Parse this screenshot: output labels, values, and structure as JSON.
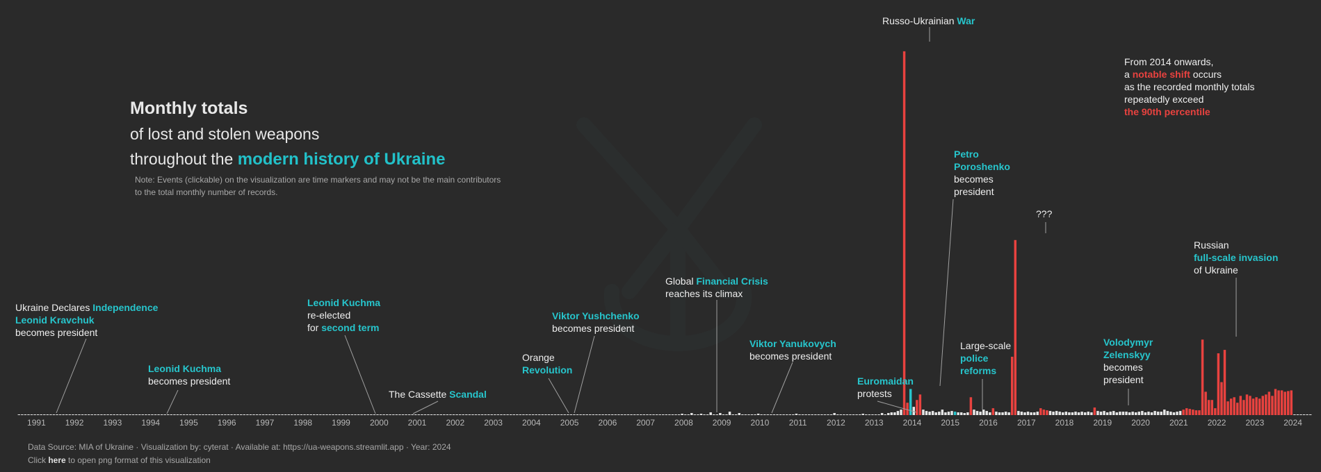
{
  "title": {
    "line1": "Monthly totals",
    "line2": "of lost and stolen weapons",
    "line3_prefix": "throughout the ",
    "line3_highlight": "modern history of Ukraine"
  },
  "note": {
    "line1": "Note: Events (clickable) on the visualization are time markers and may not be the main contributors",
    "line2": "to the total monthly number of records."
  },
  "footer": {
    "line1": "Data Source: MIA of Ukraine · Visualization by: cyterat · Available at: https://ua-weapons.streamlit.app · Year: 2024",
    "line2_prefix": "Click ",
    "line2_link": "here",
    "line2_suffix": " to open png format of this visualization"
  },
  "colors": {
    "background": "#2a2a2a",
    "normal_bar": "#e6e6e6",
    "exceed_bar": "#e8423f",
    "event_bar": "#27c5cc",
    "accent": "#27c5cc",
    "shift": "#e8423f"
  },
  "annotations": {
    "a1991": {
      "l1_pre": "Ukraine Declares ",
      "l1_hl": "Independence",
      "l2_hl": "Leonid Kravchuk",
      "l3": "becomes president"
    },
    "a1994": {
      "l1_hl": "Leonid Kuchma",
      "l2": "becomes president"
    },
    "a1999": {
      "l1_hl": "Leonid Kuchma",
      "l2": "re-elected",
      "l3_pre": "for ",
      "l3_hl": "second term"
    },
    "a2000": {
      "l1_pre": "The Cassette ",
      "l1_hl": "Scandal"
    },
    "a2004": {
      "l1": "Orange",
      "l2_hl": "Revolution"
    },
    "a2005": {
      "l1_hl": "Viktor Yushchenko",
      "l2": "becomes president"
    },
    "a2008": {
      "l1_pre": "Global ",
      "l1_hl": "Financial Crisis",
      "l2": "reaches its climax"
    },
    "a2010": {
      "l1_hl": "Viktor Yanukovych",
      "l2": "becomes president"
    },
    "a2013": {
      "l1_hl": "Euromaidan",
      "l2": "protests"
    },
    "a2014war": {
      "l1_pre": "Russo-Ukrainian ",
      "l1_hl": "War"
    },
    "a2014pres": {
      "l1_hl": "Petro",
      "l2_hl": "Poroshenko",
      "l3": "becomes",
      "l4": "president"
    },
    "a2015": {
      "l1": "Large-scale",
      "l2_hl": "police",
      "l3_hl": "reforms"
    },
    "a2017": {
      "l1": "???"
    },
    "a2019": {
      "l1_hl": "Volodymyr",
      "l2_hl": "Zelenskyy",
      "l3": "becomes",
      "l4": "president"
    },
    "a2022": {
      "l1": "Russian",
      "l2_hl": "full-scale invasion",
      "l3": "of Ukraine"
    },
    "shift": {
      "l1": "From 2014 onwards,",
      "l2_pre": "a ",
      "l2_hl": "notable shift",
      "l2_post": " occurs",
      "l3": "as the recorded monthly totals",
      "l4": "repeatedly exceed",
      "l5_hl": "the 90th percentile"
    }
  },
  "chart_data": {
    "type": "bar",
    "title": "Monthly totals of lost and stolen weapons throughout the modern history of Ukraine",
    "x_unit": "month",
    "x_range": [
      "1991-01",
      "2024-12"
    ],
    "x_ticks": [
      "1991",
      "1992",
      "1993",
      "1994",
      "1995",
      "1996",
      "1997",
      "1998",
      "1999",
      "2000",
      "2001",
      "2002",
      "2003",
      "2004",
      "2005",
      "2006",
      "2007",
      "2008",
      "2009",
      "2010",
      "2011",
      "2012",
      "2013",
      "2014",
      "2015",
      "2016",
      "2017",
      "2018",
      "2019",
      "2020",
      "2021",
      "2022",
      "2023",
      "2024"
    ],
    "y_range": [
      0,
      540
    ],
    "baseline_value": 1,
    "notes": "Bars at or below the 90th percentile drawn in light gray; bars exceeding it drawn in red; event months drawn in teal.",
    "values": {
      "2008-06": 2,
      "2008-09": 3,
      "2008-12": 2,
      "2009-03": 4,
      "2009-06": 3,
      "2009-09": 5,
      "2009-12": 3,
      "2010-06": 2,
      "2011-06": 2,
      "2012-06": 3,
      "2013-03": 2,
      "2013-09": 3,
      "2013-11": 3,
      "2013-12": 4,
      "2014-01": 4,
      "2014-02": 6,
      "2014-03": 8,
      "2014-04": 530,
      "2014-05": 18,
      "2014-06": 38,
      "2014-07": 12,
      "2014-08": 22,
      "2014-09": 30,
      "2014-10": 8,
      "2014-11": 6,
      "2014-12": 5,
      "2015-01": 6,
      "2015-02": 4,
      "2015-03": 5,
      "2015-04": 8,
      "2015-05": 4,
      "2015-06": 5,
      "2015-07": 6,
      "2015-08": 5,
      "2015-09": 4,
      "2015-10": 4,
      "2015-11": 3,
      "2015-12": 4,
      "2016-01": 26,
      "2016-02": 8,
      "2016-03": 6,
      "2016-04": 5,
      "2016-05": 8,
      "2016-06": 6,
      "2016-07": 4,
      "2016-08": 10,
      "2016-09": 5,
      "2016-10": 4,
      "2016-11": 4,
      "2016-12": 5,
      "2017-01": 4,
      "2017-02": 85,
      "2017-03": 255,
      "2017-04": 6,
      "2017-05": 5,
      "2017-06": 4,
      "2017-07": 5,
      "2017-08": 4,
      "2017-09": 4,
      "2017-10": 5,
      "2017-11": 10,
      "2017-12": 8,
      "2018-01": 7,
      "2018-02": 6,
      "2018-03": 5,
      "2018-04": 6,
      "2018-05": 5,
      "2018-06": 4,
      "2018-07": 5,
      "2018-08": 4,
      "2018-09": 4,
      "2018-10": 5,
      "2018-11": 4,
      "2018-12": 5,
      "2019-01": 4,
      "2019-02": 5,
      "2019-03": 4,
      "2019-04": 11,
      "2019-05": 6,
      "2019-06": 5,
      "2019-07": 6,
      "2019-08": 4,
      "2019-09": 5,
      "2019-10": 6,
      "2019-11": 4,
      "2019-12": 5,
      "2020-01": 5,
      "2020-02": 5,
      "2020-03": 4,
      "2020-04": 5,
      "2020-05": 4,
      "2020-06": 5,
      "2020-07": 6,
      "2020-08": 4,
      "2020-09": 5,
      "2020-10": 4,
      "2020-11": 6,
      "2020-12": 5,
      "2021-01": 5,
      "2021-02": 8,
      "2021-03": 6,
      "2021-04": 5,
      "2021-05": 4,
      "2021-06": 5,
      "2021-07": 6,
      "2021-08": 8,
      "2021-09": 10,
      "2021-10": 9,
      "2021-11": 8,
      "2021-12": 7,
      "2022-01": 7,
      "2022-02": 110,
      "2022-03": 34,
      "2022-04": 22,
      "2022-05": 22,
      "2022-06": 10,
      "2022-07": 90,
      "2022-08": 48,
      "2022-09": 95,
      "2022-10": 20,
      "2022-11": 24,
      "2022-12": 26,
      "2023-01": 18,
      "2023-02": 28,
      "2023-03": 22,
      "2023-04": 30,
      "2023-05": 28,
      "2023-06": 24,
      "2023-07": 26,
      "2023-08": 24,
      "2023-09": 28,
      "2023-10": 30,
      "2023-11": 34,
      "2023-12": 28,
      "2024-01": 38,
      "2024-02": 36,
      "2024-03": 36,
      "2024-04": 34,
      "2024-05": 35,
      "2024-06": 36
    },
    "red_months": [
      "2014-04",
      "2014-05",
      "2014-06",
      "2014-08",
      "2014-09",
      "2016-01",
      "2016-08",
      "2017-02",
      "2017-03",
      "2017-11",
      "2017-12",
      "2018-01",
      "2019-04",
      "2021-08",
      "2021-09",
      "2021-10",
      "2021-11",
      "2021-12",
      "2022-01",
      "2022-02",
      "2022-03",
      "2022-04",
      "2022-05",
      "2022-06",
      "2022-07",
      "2022-08",
      "2022-09",
      "2022-10",
      "2022-11",
      "2022-12",
      "2023-01",
      "2023-02",
      "2023-03",
      "2023-04",
      "2023-05",
      "2023-06",
      "2023-07",
      "2023-08",
      "2023-09",
      "2023-10",
      "2023-11",
      "2023-12",
      "2024-01",
      "2024-02",
      "2024-03",
      "2024-04",
      "2024-05",
      "2024-06"
    ],
    "event_months": [
      "2014-06",
      "2015-08"
    ]
  }
}
